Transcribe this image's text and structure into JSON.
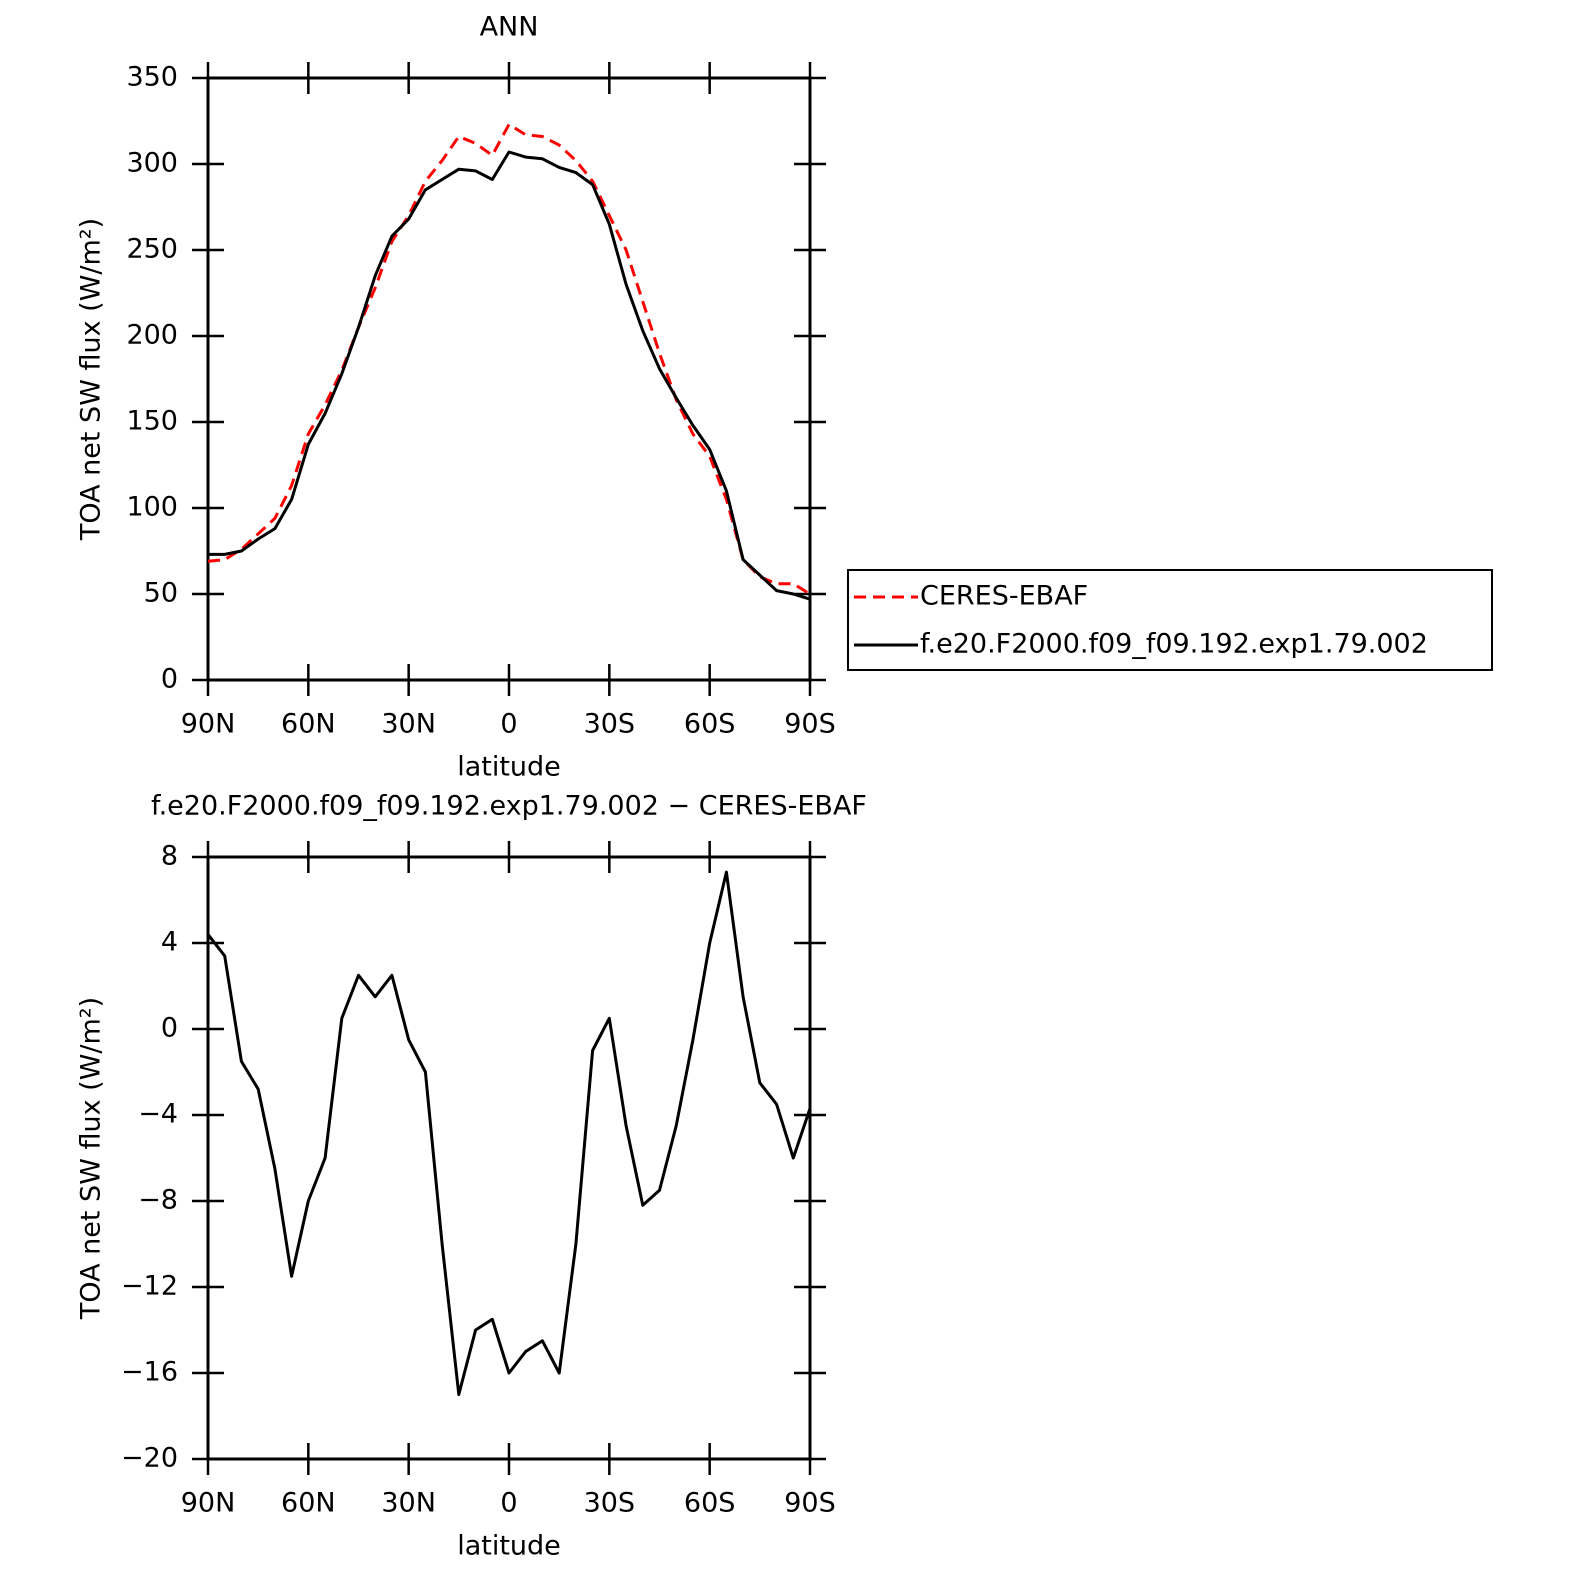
{
  "chart_data": [
    {
      "type": "line",
      "title": "ANN",
      "xlabel": "latitude",
      "ylabel": "TOA net SW flux (W/m²)",
      "x": [
        90,
        85,
        80,
        75,
        70,
        65,
        60,
        55,
        50,
        45,
        40,
        35,
        30,
        25,
        20,
        15,
        10,
        5,
        0,
        -5,
        -10,
        -15,
        -20,
        -25,
        -30,
        -35,
        -40,
        -45,
        -50,
        -55,
        -60,
        -65,
        -70,
        -75,
        -80,
        -85,
        -90
      ],
      "series": [
        {
          "name": "CERES-EBAF",
          "color": "#ff0000",
          "dash": true,
          "values": [
            69,
            70,
            76,
            85,
            94,
            113,
            143,
            160,
            180,
            205,
            228,
            255,
            270,
            290,
            302,
            316,
            312,
            305,
            323,
            317,
            316,
            311,
            302,
            290,
            270,
            250,
            220,
            190,
            163,
            143,
            130,
            105,
            70,
            60,
            56,
            56,
            50
          ]
        },
        {
          "name": "f.e20.F2000.f09_f09.192.exp1.79.002",
          "color": "#000000",
          "dash": false,
          "values": [
            73,
            73,
            75,
            82,
            88,
            105,
            137,
            155,
            178,
            205,
            235,
            258,
            268,
            285,
            291,
            297,
            296,
            291,
            307,
            304,
            303,
            298,
            295,
            288,
            265,
            230,
            203,
            181,
            164,
            148,
            134,
            110,
            70,
            61,
            52,
            50,
            47
          ]
        }
      ],
      "xlim": [
        90,
        -90
      ],
      "xticks": [
        {
          "value": 90,
          "label": "90N"
        },
        {
          "value": 60,
          "label": "60N"
        },
        {
          "value": 30,
          "label": "30N"
        },
        0,
        {
          "value": -30,
          "label": "30S"
        },
        {
          "value": -60,
          "label": "60S"
        },
        {
          "value": -90,
          "label": "90S"
        }
      ],
      "ylim": [
        0,
        350
      ],
      "yticks": [
        0,
        50,
        100,
        150,
        200,
        250,
        300,
        350
      ],
      "legend": "right"
    },
    {
      "type": "line",
      "title": "f.e20.F2000.f09_f09.192.exp1.79.002 − CERES-EBAF",
      "xlabel": "latitude",
      "ylabel": "TOA net SW flux (W/m²)",
      "x": [
        90,
        85,
        80,
        75,
        70,
        65,
        60,
        55,
        50,
        45,
        40,
        35,
        30,
        25,
        20,
        15,
        10,
        5,
        0,
        -5,
        -10,
        -15,
        -20,
        -25,
        -30,
        -35,
        -40,
        -45,
        -50,
        -55,
        -60,
        -65,
        -70,
        -75,
        -80,
        -85,
        -90
      ],
      "series": [
        {
          "color": "#000000",
          "dash": false,
          "values": [
            4.4,
            3.4,
            -1.5,
            -2.8,
            -6.5,
            -11.5,
            -8,
            -6,
            0.5,
            2.5,
            1.5,
            2.5,
            -0.5,
            -2,
            -10,
            -17,
            -14,
            -13.5,
            -16,
            -15,
            -14.5,
            -16,
            -10,
            -1,
            0.5,
            -4.5,
            -8.2,
            -7.5,
            -4.5,
            -0.5,
            4,
            7.3,
            1.5,
            -2.5,
            -3.5,
            -6,
            -3.7
          ]
        }
      ],
      "xlim": [
        90,
        -90
      ],
      "xticks": [
        {
          "value": 90,
          "label": "90N"
        },
        {
          "value": 60,
          "label": "60N"
        },
        {
          "value": 30,
          "label": "30N"
        },
        0,
        {
          "value": -30,
          "label": "30S"
        },
        {
          "value": -60,
          "label": "60S"
        },
        {
          "value": -90,
          "label": "90S"
        }
      ],
      "ylim": [
        -20,
        8
      ],
      "yticks": [
        {
          "value": -20,
          "label": "−20"
        },
        {
          "value": -16,
          "label": "−16"
        },
        {
          "value": -12,
          "label": "−12"
        },
        {
          "value": -8,
          "label": "−8"
        },
        {
          "value": -4,
          "label": "−4"
        },
        0,
        4,
        8
      ]
    }
  ]
}
